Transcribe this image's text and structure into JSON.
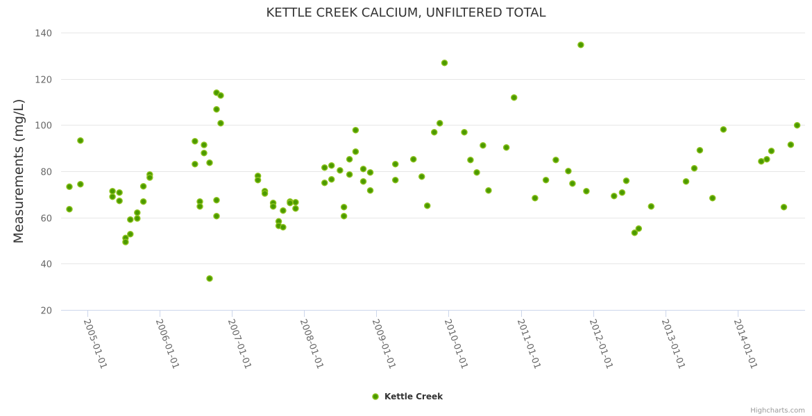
{
  "chart_data": {
    "type": "scatter",
    "title": "KETTLE CREEK CALCIUM, UNFILTERED TOTAL",
    "xlabel": "",
    "ylabel": "Measurements (mg/L)",
    "ylim": [
      20,
      140
    ],
    "yticks": [
      20,
      40,
      60,
      80,
      100,
      120,
      140
    ],
    "xlim": [
      "2004-08-22",
      "2014-12-06"
    ],
    "xticks": [
      "2005-01-01",
      "2006-01-01",
      "2007-01-01",
      "2008-01-01",
      "2009-01-01",
      "2010-01-01",
      "2011-01-01",
      "2012-01-01",
      "2013-01-01",
      "2014-01-01"
    ],
    "grid": true,
    "legend": {
      "position": "bottom-center",
      "entries": [
        "Kettle Creek"
      ]
    },
    "credits": "Highcharts.com",
    "colors": {
      "marker_fill": "#4c9a00",
      "marker_stroke": "#8cc21e"
    },
    "series": [
      {
        "name": "Kettle Creek",
        "points": [
          [
            "2004-10-03",
            73.3
          ],
          [
            "2004-10-03",
            63.6
          ],
          [
            "2004-11-28",
            93.3
          ],
          [
            "2004-11-28",
            74.4
          ],
          [
            "2005-05-09",
            71.4
          ],
          [
            "2005-05-09",
            69.0
          ],
          [
            "2005-06-13",
            70.8
          ],
          [
            "2005-06-13",
            67.2
          ],
          [
            "2005-07-14",
            51.1
          ],
          [
            "2005-07-14",
            49.4
          ],
          [
            "2005-08-07",
            52.8
          ],
          [
            "2005-08-07",
            59.1
          ],
          [
            "2005-09-11",
            62.1
          ],
          [
            "2005-09-11",
            59.6
          ],
          [
            "2005-10-12",
            73.5
          ],
          [
            "2005-10-12",
            66.9
          ],
          [
            "2005-11-13",
            78.6
          ],
          [
            "2005-11-13",
            77.3
          ],
          [
            "2006-06-29",
            93.0
          ],
          [
            "2006-06-29",
            83.1
          ],
          [
            "2006-07-24",
            66.9
          ],
          [
            "2006-07-24",
            64.8
          ],
          [
            "2006-08-14",
            91.4
          ],
          [
            "2006-08-14",
            87.9
          ],
          [
            "2006-09-11",
            83.7
          ],
          [
            "2006-09-11",
            33.6
          ],
          [
            "2006-10-16",
            67.5
          ],
          [
            "2006-10-16",
            60.6
          ],
          [
            "2006-10-16",
            114.0
          ],
          [
            "2006-10-16",
            106.8
          ],
          [
            "2006-11-06",
            112.8
          ],
          [
            "2006-11-06",
            100.8
          ],
          [
            "2007-05-13",
            78.0
          ],
          [
            "2007-05-13",
            76.2
          ],
          [
            "2007-06-17",
            71.4
          ],
          [
            "2007-06-17",
            70.4
          ],
          [
            "2007-07-29",
            66.3
          ],
          [
            "2007-07-29",
            64.8
          ],
          [
            "2007-08-26",
            58.3
          ],
          [
            "2007-08-26",
            56.4
          ],
          [
            "2007-09-17",
            55.8
          ],
          [
            "2007-09-17",
            63.0
          ],
          [
            "2007-10-22",
            66.9
          ],
          [
            "2007-10-22",
            66.3
          ],
          [
            "2007-11-19",
            66.6
          ],
          [
            "2007-11-19",
            63.9
          ],
          [
            "2008-04-14",
            81.6
          ],
          [
            "2008-04-14",
            75.0
          ],
          [
            "2008-05-19",
            82.5
          ],
          [
            "2008-05-19",
            76.5
          ],
          [
            "2008-07-01",
            80.4
          ],
          [
            "2008-07-21",
            64.5
          ],
          [
            "2008-07-21",
            60.6
          ],
          [
            "2008-08-18",
            85.2
          ],
          [
            "2008-08-18",
            78.6
          ],
          [
            "2008-09-18",
            97.8
          ],
          [
            "2008-09-18",
            88.5
          ],
          [
            "2008-10-27",
            81.0
          ],
          [
            "2008-10-27",
            75.6
          ],
          [
            "2008-12-01",
            79.5
          ],
          [
            "2008-12-01",
            71.7
          ],
          [
            "2009-04-07",
            83.1
          ],
          [
            "2009-04-07",
            76.2
          ],
          [
            "2009-07-07",
            85.2
          ],
          [
            "2009-08-18",
            77.7
          ],
          [
            "2009-09-15",
            65.1
          ],
          [
            "2009-10-20",
            96.9
          ],
          [
            "2009-11-17",
            100.8
          ],
          [
            "2009-12-11",
            126.9
          ],
          [
            "2010-03-21",
            96.9
          ],
          [
            "2010-04-21",
            84.9
          ],
          [
            "2010-05-23",
            79.5
          ],
          [
            "2010-06-23",
            91.2
          ],
          [
            "2010-07-21",
            71.7
          ],
          [
            "2010-10-19",
            90.3
          ],
          [
            "2010-11-27",
            111.9
          ],
          [
            "2011-03-13",
            68.4
          ],
          [
            "2011-05-07",
            76.2
          ],
          [
            "2011-06-26",
            84.9
          ],
          [
            "2011-08-28",
            80.1
          ],
          [
            "2011-09-18",
            74.7
          ],
          [
            "2011-10-30",
            134.7
          ],
          [
            "2011-11-27",
            71.4
          ],
          [
            "2012-04-15",
            69.3
          ],
          [
            "2012-05-26",
            70.8
          ],
          [
            "2012-06-16",
            75.9
          ],
          [
            "2012-07-28",
            53.4
          ],
          [
            "2012-08-18",
            55.2
          ],
          [
            "2012-10-20",
            64.8
          ],
          [
            "2013-04-14",
            75.6
          ],
          [
            "2013-05-26",
            81.3
          ],
          [
            "2013-06-23",
            89.1
          ],
          [
            "2013-08-26",
            68.4
          ],
          [
            "2013-10-20",
            98.1
          ],
          [
            "2014-04-29",
            84.3
          ],
          [
            "2014-05-27",
            85.2
          ],
          [
            "2014-06-19",
            88.8
          ],
          [
            "2014-08-21",
            64.5
          ],
          [
            "2014-09-25",
            91.5
          ],
          [
            "2014-10-27",
            99.9
          ]
        ]
      }
    ]
  }
}
